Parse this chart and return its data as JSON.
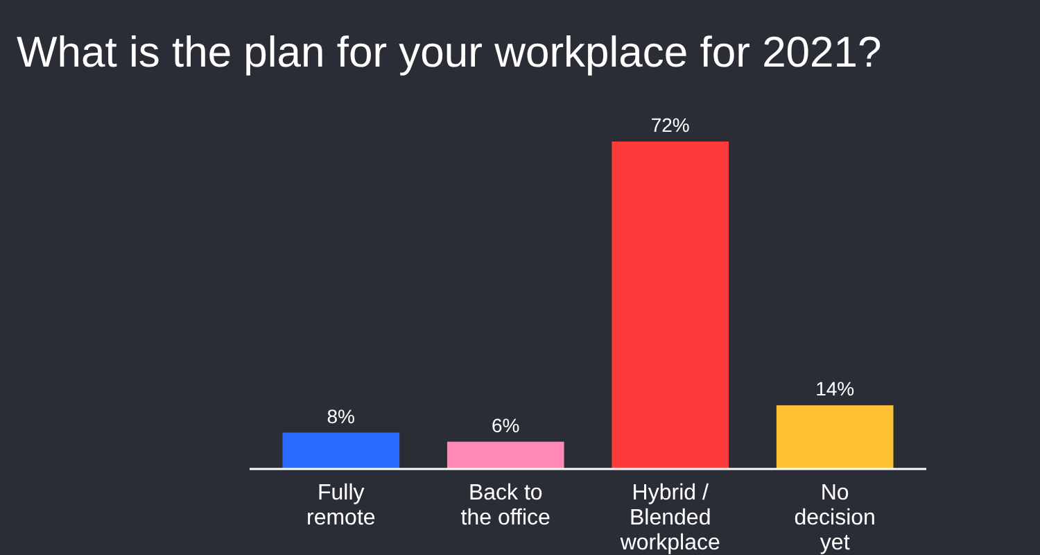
{
  "chart_data": {
    "type": "bar",
    "title": "What is the plan for your workplace for 2021?",
    "categories": [
      "Fully remote",
      "Back to the office",
      "Hybrid / Blended workplace",
      "No decision yet"
    ],
    "values": [
      8,
      6,
      72,
      14
    ],
    "colors": [
      "#2a6bff",
      "#ff88b4",
      "#ff3a3a",
      "#ffc132"
    ],
    "value_labels": [
      "8%",
      "6%",
      "72%",
      "14%"
    ]
  }
}
